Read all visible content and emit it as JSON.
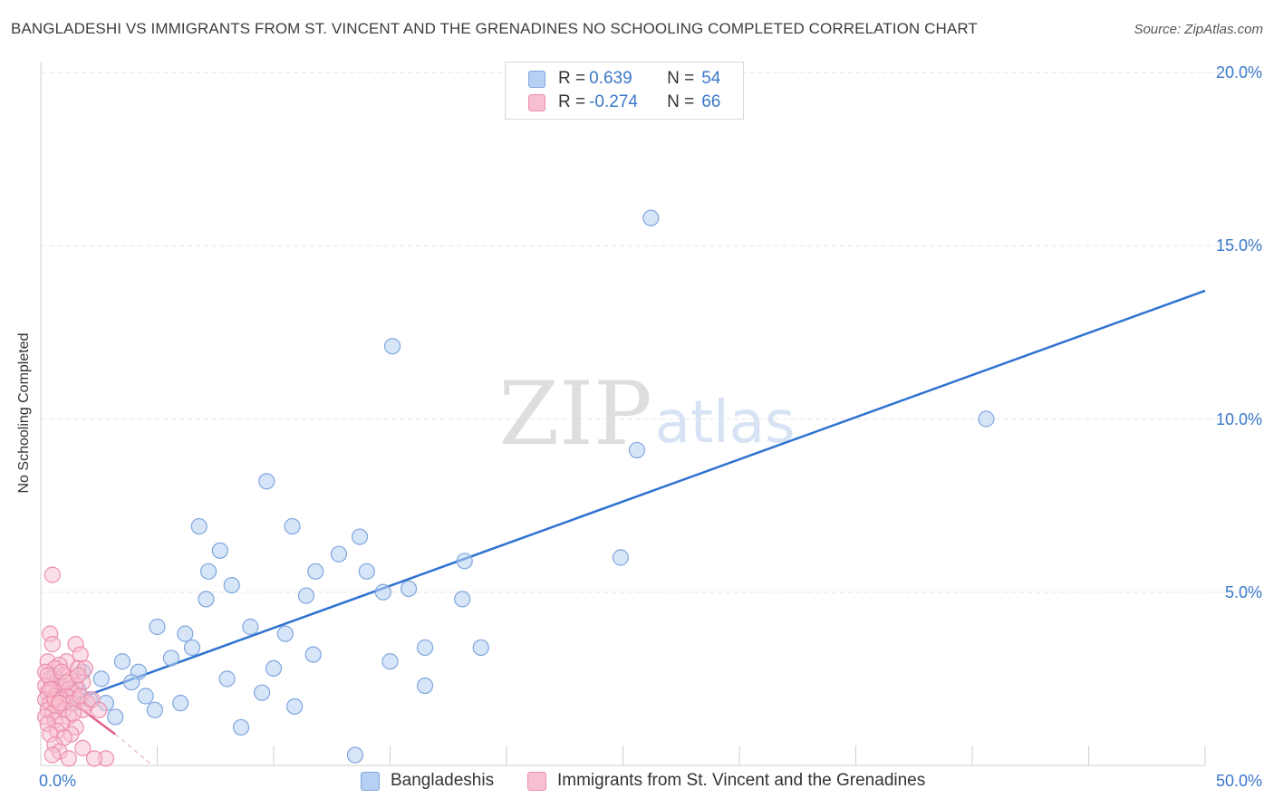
{
  "header": {
    "title": "BANGLADESHI VS IMMIGRANTS FROM ST. VINCENT AND THE GRENADINES NO SCHOOLING COMPLETED CORRELATION CHART",
    "source": "Source: ZipAtlas.com"
  },
  "watermark": {
    "zip": "ZIP",
    "atlas": "atlas"
  },
  "colors": {
    "blue_fill": "#b6cff2",
    "blue_stroke": "#7fa6de",
    "blue_line": "#2f72d0",
    "pink_fill": "#f7c0d0",
    "pink_stroke": "#ec8fac",
    "pink_line": "#e0608a",
    "axis_text": "#3a78c9",
    "grid": "#e6e6e6"
  },
  "legend": {
    "series": [
      {
        "r_label": "R =",
        "r_value": "0.639",
        "n_label": "N =",
        "n_value": "54"
      },
      {
        "r_label": "R =",
        "r_value": "-0.274",
        "n_label": "N =",
        "n_value": "66"
      }
    ]
  },
  "chart_data": {
    "type": "scatter",
    "title": "BANGLADESHI VS IMMIGRANTS FROM ST. VINCENT AND THE GRENADINES NO SCHOOLING COMPLETED CORRELATION CHART",
    "xlabel": "",
    "ylabel": "No Schooling Completed",
    "xlim": [
      0,
      50
    ],
    "ylim": [
      0,
      20
    ],
    "x_tick_labels": {
      "min": "0.0%",
      "max": "50.0%"
    },
    "y_ticks": [
      {
        "value": 5,
        "label": "5.0%"
      },
      {
        "value": 10,
        "label": "10.0%"
      },
      {
        "value": 15,
        "label": "15.0%"
      },
      {
        "value": 20,
        "label": "20.0%"
      }
    ],
    "grid": true,
    "series": [
      {
        "name": "Bangladeshis",
        "color": "#b6cff2",
        "trend": {
          "x": [
            1.5,
            50
          ],
          "y": [
            1.9,
            13.7
          ]
        },
        "points": [
          [
            26.2,
            15.8
          ],
          [
            15.1,
            12.1
          ],
          [
            40.6,
            10.0
          ],
          [
            25.6,
            9.1
          ],
          [
            9.7,
            8.2
          ],
          [
            10.8,
            6.9
          ],
          [
            6.8,
            6.9
          ],
          [
            13.7,
            6.6
          ],
          [
            7.7,
            6.2
          ],
          [
            12.8,
            6.1
          ],
          [
            24.9,
            6.0
          ],
          [
            18.2,
            5.9
          ],
          [
            7.2,
            5.6
          ],
          [
            11.8,
            5.6
          ],
          [
            14.0,
            5.6
          ],
          [
            8.2,
            5.2
          ],
          [
            15.8,
            5.1
          ],
          [
            14.7,
            5.0
          ],
          [
            11.4,
            4.9
          ],
          [
            7.1,
            4.8
          ],
          [
            18.1,
            4.8
          ],
          [
            5.0,
            4.0
          ],
          [
            9.0,
            4.0
          ],
          [
            6.2,
            3.8
          ],
          [
            10.5,
            3.8
          ],
          [
            6.5,
            3.4
          ],
          [
            16.5,
            3.4
          ],
          [
            18.9,
            3.4
          ],
          [
            11.7,
            3.2
          ],
          [
            5.6,
            3.1
          ],
          [
            3.5,
            3.0
          ],
          [
            15.0,
            3.0
          ],
          [
            1.8,
            2.7
          ],
          [
            4.2,
            2.7
          ],
          [
            10.0,
            2.8
          ],
          [
            8.0,
            2.5
          ],
          [
            2.6,
            2.5
          ],
          [
            3.9,
            2.4
          ],
          [
            16.5,
            2.3
          ],
          [
            1.6,
            2.2
          ],
          [
            9.5,
            2.1
          ],
          [
            4.5,
            2.0
          ],
          [
            2.1,
            1.9
          ],
          [
            2.8,
            1.8
          ],
          [
            6.0,
            1.8
          ],
          [
            10.9,
            1.7
          ],
          [
            4.9,
            1.6
          ],
          [
            3.2,
            1.4
          ],
          [
            8.6,
            1.1
          ],
          [
            13.5,
            0.3
          ],
          [
            1.2,
            2.0
          ],
          [
            0.9,
            2.3
          ],
          [
            1.4,
            1.8
          ],
          [
            0.6,
            2.6
          ]
        ]
      },
      {
        "name": "Immigrants from St. Vincent and the Grenadines",
        "color": "#f7c0d0",
        "trend": {
          "x": [
            0.2,
            3.2
          ],
          "y": [
            2.4,
            0.9
          ],
          "dashed_extension": {
            "x": [
              3.2,
              4.8
            ],
            "y": [
              0.9,
              0.0
            ]
          }
        },
        "points": [
          [
            0.5,
            5.5
          ],
          [
            0.4,
            3.8
          ],
          [
            1.5,
            3.5
          ],
          [
            0.5,
            3.5
          ],
          [
            1.7,
            3.2
          ],
          [
            1.1,
            3.0
          ],
          [
            0.3,
            3.0
          ],
          [
            0.8,
            2.9
          ],
          [
            1.6,
            2.8
          ],
          [
            0.6,
            2.8
          ],
          [
            1.9,
            2.8
          ],
          [
            0.2,
            2.7
          ],
          [
            1.0,
            2.6
          ],
          [
            0.4,
            2.5
          ],
          [
            1.3,
            2.5
          ],
          [
            0.7,
            2.4
          ],
          [
            1.8,
            2.4
          ],
          [
            0.2,
            2.3
          ],
          [
            0.9,
            2.3
          ],
          [
            1.5,
            2.3
          ],
          [
            0.5,
            2.2
          ],
          [
            1.2,
            2.2
          ],
          [
            0.3,
            2.1
          ],
          [
            0.8,
            2.1
          ],
          [
            1.4,
            2.1
          ],
          [
            0.6,
            2.0
          ],
          [
            1.1,
            2.0
          ],
          [
            0.2,
            1.9
          ],
          [
            0.9,
            1.9
          ],
          [
            1.6,
            1.9
          ],
          [
            0.4,
            1.8
          ],
          [
            1.3,
            1.8
          ],
          [
            2.0,
            1.8
          ],
          [
            0.7,
            1.7
          ],
          [
            0.3,
            1.6
          ],
          [
            1.0,
            1.6
          ],
          [
            1.8,
            1.6
          ],
          [
            0.5,
            1.5
          ],
          [
            0.2,
            1.4
          ],
          [
            1.2,
            1.4
          ],
          [
            0.6,
            1.3
          ],
          [
            0.9,
            1.2
          ],
          [
            0.3,
            1.2
          ],
          [
            1.5,
            1.1
          ],
          [
            0.7,
            1.0
          ],
          [
            1.3,
            0.9
          ],
          [
            0.4,
            0.9
          ],
          [
            1.0,
            0.8
          ],
          [
            0.6,
            0.6
          ],
          [
            1.8,
            0.5
          ],
          [
            0.8,
            0.4
          ],
          [
            2.8,
            0.2
          ],
          [
            2.3,
            0.2
          ],
          [
            0.5,
            0.3
          ],
          [
            1.2,
            0.2
          ],
          [
            0.3,
            2.6
          ],
          [
            1.7,
            2.0
          ],
          [
            0.9,
            2.7
          ],
          [
            1.4,
            1.5
          ],
          [
            2.2,
            1.9
          ],
          [
            0.6,
            1.9
          ],
          [
            1.1,
            2.4
          ],
          [
            0.4,
            2.2
          ],
          [
            1.6,
            2.6
          ],
          [
            0.8,
            1.8
          ],
          [
            2.5,
            1.6
          ]
        ]
      }
    ]
  }
}
